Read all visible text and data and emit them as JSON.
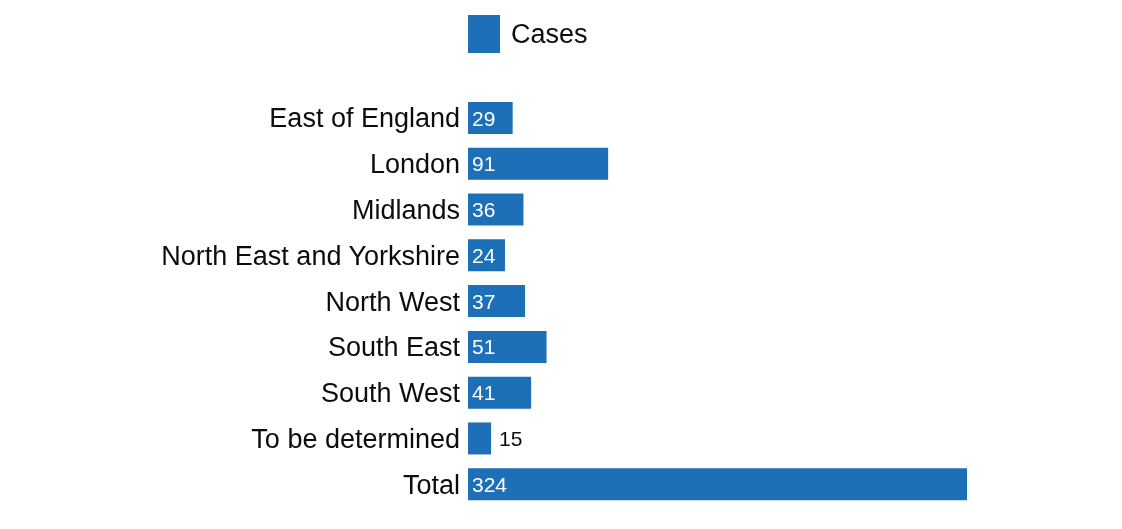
{
  "chart_data": {
    "type": "bar",
    "orientation": "horizontal",
    "categories": [
      "East of England",
      "London",
      "Midlands",
      "North East and Yorkshire",
      "North West",
      "South East",
      "South West",
      "To be determined",
      "Total"
    ],
    "series": [
      {
        "name": "Cases",
        "color": "#1d70b8",
        "values": [
          29,
          91,
          36,
          24,
          37,
          51,
          41,
          15,
          324
        ]
      }
    ],
    "data_labels": true,
    "legend": "top",
    "grid": false,
    "tick_labels": "y"
  }
}
